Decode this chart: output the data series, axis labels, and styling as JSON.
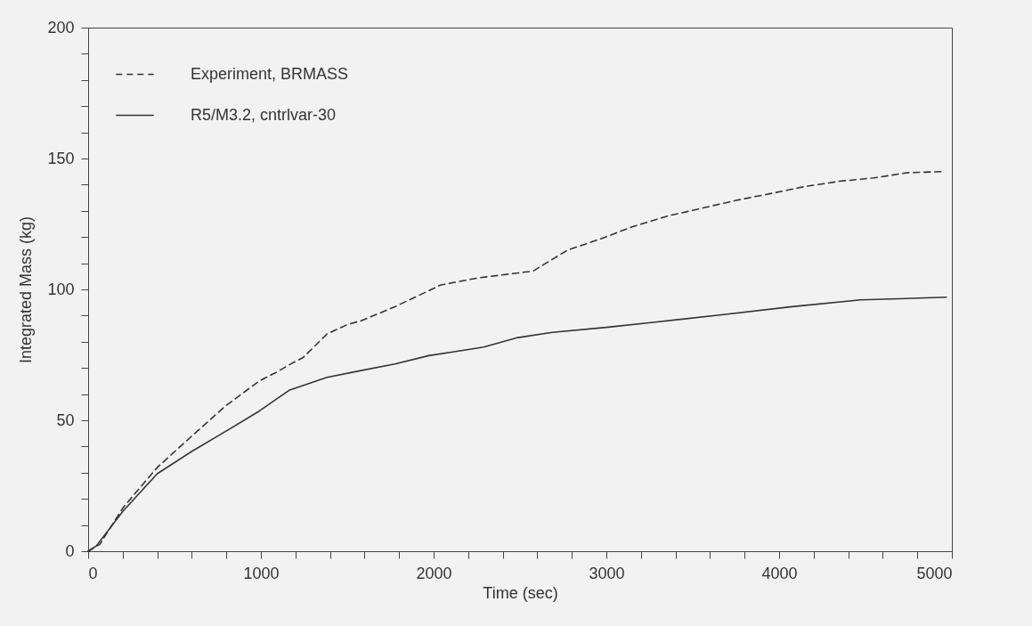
{
  "chart_data": {
    "type": "line",
    "xlabel": "Time (sec)",
    "ylabel": "Integrated Mass (kg)",
    "xlim": [
      0,
      5000
    ],
    "ylim": [
      0,
      200
    ],
    "xticks": [
      0,
      {
        "value": 200,
        "label": null
      },
      {
        "value": 400,
        "label": null
      },
      {
        "value": 600,
        "label": null
      },
      {
        "value": 800,
        "label": null
      },
      1000,
      {
        "value": 1200,
        "label": null
      },
      {
        "value": 1400,
        "label": null
      },
      {
        "value": 1600,
        "label": null
      },
      {
        "value": 1800,
        "label": null
      },
      2000,
      {
        "value": 2200,
        "label": null
      },
      {
        "value": 2400,
        "label": null
      },
      {
        "value": 2600,
        "label": null
      },
      {
        "value": 2800,
        "label": null
      },
      3000,
      {
        "value": 3200,
        "label": null
      },
      {
        "value": 3400,
        "label": null
      },
      {
        "value": 3600,
        "label": null
      },
      {
        "value": 3800,
        "label": null
      },
      4000,
      {
        "value": 4200,
        "label": null
      },
      {
        "value": 4400,
        "label": null
      },
      {
        "value": 4600,
        "label": null
      },
      {
        "value": 4800,
        "label": null
      },
      5000
    ],
    "yticks": [
      0,
      {
        "value": 10,
        "label": null
      },
      {
        "value": 20,
        "label": null
      },
      {
        "value": 30,
        "label": null
      },
      {
        "value": 40,
        "label": null
      },
      50,
      {
        "value": 60,
        "label": null
      },
      {
        "value": 70,
        "label": null
      },
      {
        "value": 80,
        "label": null
      },
      {
        "value": 90,
        "label": null
      },
      100,
      {
        "value": 110,
        "label": null
      },
      {
        "value": 120,
        "label": null
      },
      {
        "value": 130,
        "label": null
      },
      {
        "value": 140,
        "label": null
      },
      150,
      {
        "value": 160,
        "label": null
      },
      {
        "value": 170,
        "label": null
      },
      {
        "value": 180,
        "label": null
      },
      {
        "value": 190,
        "label": null
      },
      200
    ],
    "grid": false,
    "legend": "top left",
    "marker": "none",
    "series": [
      {
        "name": "Experiment, BRMASS",
        "color": "#333333",
        "line_style": "dashed",
        "x": [
          0,
          67,
          204,
          400,
          597,
          794,
          990,
          1088,
          1186,
          1245,
          1383,
          1506,
          1580,
          1776,
          2042,
          2257,
          2576,
          2675,
          2775,
          2954,
          3153,
          3353,
          3552,
          3751,
          3950,
          4149,
          4349,
          4548,
          4747,
          4946
        ],
        "values": [
          0,
          2.6,
          16.8,
          32,
          43.8,
          55.4,
          65,
          68.3,
          72,
          74,
          83,
          86.7,
          88,
          93.4,
          101.7,
          104.4,
          107,
          111,
          115,
          119,
          124,
          128,
          131,
          134,
          136.6,
          139.3,
          141.3,
          142.6,
          144.6,
          145
        ]
      },
      {
        "name": "R5/M3.2, cntrlvar-30",
        "color": "#333333",
        "line_style": "solid",
        "x": [
          0,
          47,
          204,
          400,
          597,
          794,
          990,
          1167,
          1383,
          1580,
          1776,
          1972,
          2169,
          2290,
          2488,
          2687,
          3000,
          3282,
          3679,
          4075,
          4472,
          4968
        ],
        "values": [
          0,
          2,
          15.5,
          29.6,
          38,
          45.7,
          53.5,
          61.6,
          66.4,
          69,
          71.5,
          74.7,
          76.7,
          78,
          81.6,
          83.6,
          85.5,
          87.5,
          90.4,
          93.4,
          96,
          97
        ]
      }
    ]
  }
}
